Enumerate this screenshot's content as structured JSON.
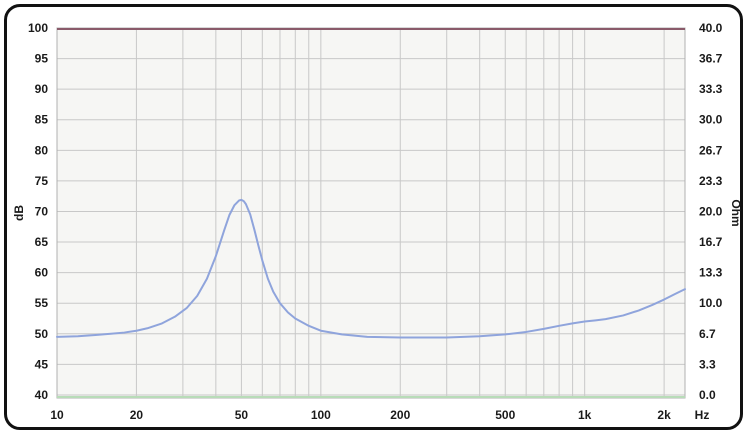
{
  "chart_data": {
    "type": "line",
    "title": "",
    "xlabel": "Hz",
    "ylabel": "dB",
    "y2label": "Ohm",
    "x_scale": "log",
    "xlim": [
      10,
      2400
    ],
    "ylim": [
      39.5,
      100
    ],
    "y2lim": [
      0.0,
      40.0
    ],
    "grid": true,
    "legend": "none",
    "x_ticks": [
      {
        "value": 10,
        "label": "10"
      },
      {
        "value": 20,
        "label": "20"
      },
      {
        "value": 50,
        "label": "50"
      },
      {
        "value": 100,
        "label": "100"
      },
      {
        "value": 200,
        "label": "200"
      },
      {
        "value": 500,
        "label": "500"
      },
      {
        "value": 1000,
        "label": "1k"
      },
      {
        "value": 2000,
        "label": "2k"
      }
    ],
    "y_ticks": [
      "100",
      "95",
      "90",
      "85",
      "80",
      "75",
      "70",
      "65",
      "60",
      "55",
      "50",
      "45",
      "40"
    ],
    "y2_ticks": [
      "40.0",
      "36.7",
      "33.3",
      "30.0",
      "26.7",
      "23.3",
      "20.0",
      "16.7",
      "13.3",
      "10.0",
      "6.7",
      "3.3",
      "0.0"
    ],
    "colors": {
      "curve": "#8fa4dc",
      "grid": "#c8c8c8",
      "frame": "#111111",
      "top_line": "#8a5a6a",
      "bottom_line": "#b8dcb8"
    },
    "series": [
      {
        "x": [
          10,
          12,
          14,
          16,
          18,
          20,
          22,
          25,
          28,
          31,
          34,
          37,
          40,
          43,
          45,
          47,
          49,
          50,
          51,
          52,
          54,
          56,
          58,
          60,
          63,
          66,
          70,
          75,
          80,
          90,
          100,
          120,
          150,
          200,
          250,
          300,
          400,
          500,
          600,
          700,
          800,
          900,
          1000,
          1100,
          1200,
          1400,
          1600,
          1800,
          2000,
          2200,
          2400
        ],
        "values": [
          49.5,
          49.6,
          49.8,
          50.0,
          50.2,
          50.5,
          50.9,
          51.7,
          52.8,
          54.2,
          56.2,
          59.0,
          62.7,
          66.9,
          69.4,
          71.0,
          71.8,
          71.9,
          71.7,
          71.2,
          69.5,
          67.0,
          64.4,
          62.0,
          59.0,
          56.9,
          55.0,
          53.5,
          52.5,
          51.3,
          50.5,
          49.9,
          49.5,
          49.4,
          49.4,
          49.4,
          49.6,
          49.9,
          50.3,
          50.8,
          51.3,
          51.7,
          52.0,
          52.2,
          52.4,
          53.0,
          53.8,
          54.7,
          55.6,
          56.5,
          57.3
        ]
      }
    ]
  }
}
